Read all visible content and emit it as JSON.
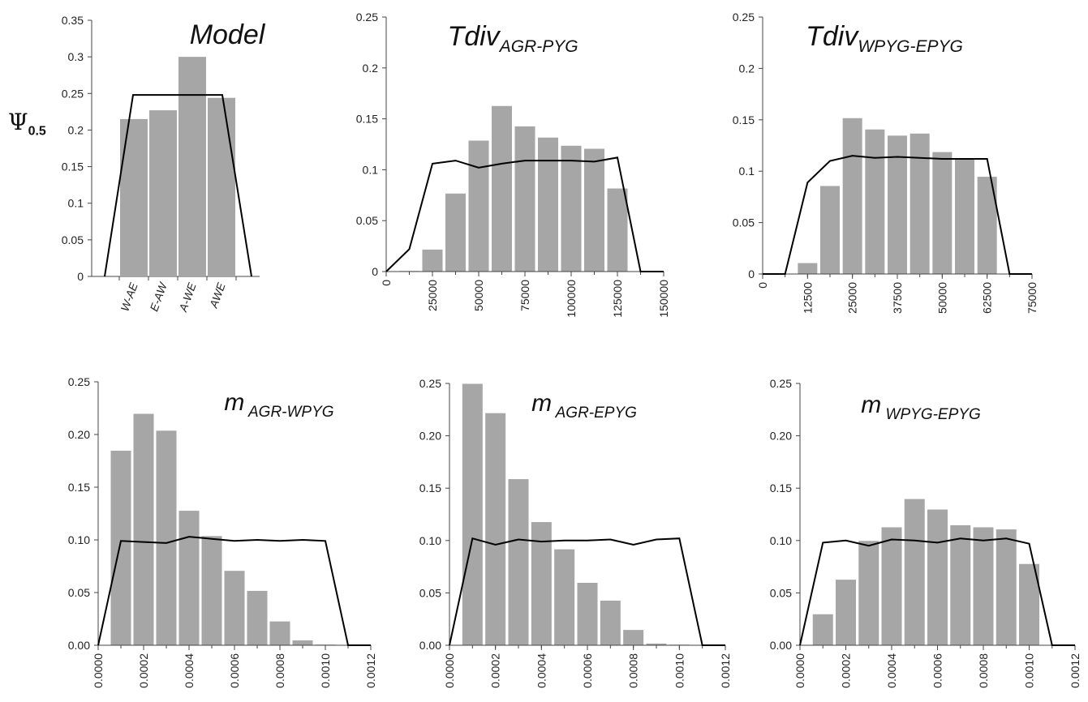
{
  "figure": {
    "ylabel_symbol": "Ψ",
    "ylabel_sub": "0.5"
  },
  "chart_data": [
    {
      "type": "bar",
      "title": "Model",
      "title_sub": "",
      "categories": [
        "W-AE",
        "E-AW",
        "A-WE",
        "AWE"
      ],
      "values": [
        0.215,
        0.227,
        0.3,
        0.244
      ],
      "line_x": [
        -0.5,
        0.0,
        1.0,
        2.0,
        3.0,
        3.5
      ],
      "line_y": [
        0.0,
        0.248,
        0.248,
        0.248,
        0.248,
        0.0
      ],
      "ylim": [
        0,
        0.35
      ],
      "yticks": [
        "0",
        "0.05",
        "0.1",
        "0.15",
        "0.2",
        "0.25",
        "0.3",
        "0.35"
      ],
      "bar_color": "#a6a6a6",
      "line_color": "#000000"
    },
    {
      "type": "bar",
      "title": "Tdiv",
      "title_sub": "AGR-PYG",
      "bin_centers": [
        12500,
        25000,
        37500,
        50000,
        62500,
        75000,
        87500,
        100000,
        112500,
        125000
      ],
      "values": [
        0.001,
        0.022,
        0.077,
        0.129,
        0.163,
        0.143,
        0.132,
        0.124,
        0.121,
        0.082
      ],
      "line_x": [
        0,
        12500,
        25000,
        37500,
        50000,
        62500,
        75000,
        87500,
        100000,
        112500,
        125000,
        137500,
        150000
      ],
      "line_y": [
        0.0,
        0.022,
        0.106,
        0.109,
        0.102,
        0.106,
        0.109,
        0.109,
        0.109,
        0.108,
        0.112,
        0.0,
        0.0
      ],
      "xlim": [
        0,
        150000
      ],
      "ylim": [
        0,
        0.25
      ],
      "xticks": [
        "0",
        "25000",
        "50000",
        "75000",
        "100000",
        "125000",
        "150000"
      ],
      "yticks": [
        "0",
        "0.05",
        "0.1",
        "0.15",
        "0.2",
        "0.25"
      ],
      "bar_color": "#a6a6a6",
      "line_color": "#000000"
    },
    {
      "type": "bar",
      "title": "Tdiv",
      "title_sub": "WPYG-EPYG",
      "bin_centers": [
        12500,
        18750,
        25000,
        31250,
        37500,
        43750,
        50000,
        56250,
        62500
      ],
      "values": [
        0.011,
        0.086,
        0.152,
        0.141,
        0.135,
        0.137,
        0.119,
        0.113,
        0.095
      ],
      "line_x": [
        0,
        6250,
        12500,
        18750,
        25000,
        31250,
        37500,
        43750,
        50000,
        56250,
        62500,
        68750,
        75000
      ],
      "line_y": [
        0.0,
        0.0,
        0.089,
        0.11,
        0.115,
        0.113,
        0.114,
        0.113,
        0.112,
        0.112,
        0.112,
        0.0,
        0.0
      ],
      "xlim": [
        0,
        75000
      ],
      "ylim": [
        0,
        0.25
      ],
      "xticks": [
        "0",
        "12500",
        "25000",
        "37500",
        "50000",
        "62500",
        "75000"
      ],
      "yticks": [
        "0",
        "0.05",
        "0.1",
        "0.15",
        "0.2",
        "0.25"
      ],
      "bar_color": "#a6a6a6",
      "line_color": "#000000"
    },
    {
      "type": "bar",
      "title": "m",
      "title_sub": "AGR-WPYG",
      "bin_centers": [
        0.0001,
        0.0002,
        0.0003,
        0.0004,
        0.0005,
        0.0006,
        0.0007,
        0.0008,
        0.0009,
        0.001
      ],
      "values": [
        0.185,
        0.22,
        0.204,
        0.128,
        0.104,
        0.071,
        0.052,
        0.023,
        0.005,
        0.001
      ],
      "line_x": [
        0.0,
        0.0001,
        0.0002,
        0.0003,
        0.0004,
        0.0005,
        0.0006,
        0.0007,
        0.0008,
        0.0009,
        0.001,
        0.0011,
        0.0012
      ],
      "line_y": [
        0.0,
        0.099,
        0.098,
        0.097,
        0.103,
        0.101,
        0.099,
        0.1,
        0.099,
        0.1,
        0.099,
        0.0,
        0.0
      ],
      "xlim": [
        0,
        0.0012
      ],
      "ylim": [
        0,
        0.25
      ],
      "xticks": [
        "0.0000",
        "0.0002",
        "0.0004",
        "0.0006",
        "0.0008",
        "0.0010",
        "0.0012"
      ],
      "yticks": [
        "0.00",
        "0.05",
        "0.10",
        "0.15",
        "0.20",
        "0.25"
      ],
      "bar_color": "#a6a6a6",
      "line_color": "#000000"
    },
    {
      "type": "bar",
      "title": "m",
      "title_sub": "AGR-EPYG",
      "bin_centers": [
        0.0001,
        0.0002,
        0.0003,
        0.0004,
        0.0005,
        0.0006,
        0.0007,
        0.0008,
        0.0009,
        0.001
      ],
      "values": [
        0.25,
        0.222,
        0.159,
        0.118,
        0.092,
        0.06,
        0.043,
        0.015,
        0.002,
        0.001
      ],
      "line_x": [
        0.0,
        0.0001,
        0.0002,
        0.0003,
        0.0004,
        0.0005,
        0.0006,
        0.0007,
        0.0008,
        0.0009,
        0.001,
        0.0011,
        0.0012
      ],
      "line_y": [
        0.0,
        0.102,
        0.096,
        0.101,
        0.099,
        0.1,
        0.1,
        0.101,
        0.096,
        0.101,
        0.102,
        0.0,
        0.0
      ],
      "xlim": [
        0,
        0.0012
      ],
      "ylim": [
        0,
        0.25
      ],
      "xticks": [
        "0.0000",
        "0.0002",
        "0.0004",
        "0.0006",
        "0.0008",
        "0.0010",
        "0.0012"
      ],
      "yticks": [
        "0.00",
        "0.05",
        "0.10",
        "0.15",
        "0.20",
        "0.25"
      ],
      "bar_color": "#a6a6a6",
      "line_color": "#000000"
    },
    {
      "type": "bar",
      "title": "m",
      "title_sub": "WPYG-EPYG",
      "bin_centers": [
        0.0001,
        0.0002,
        0.0003,
        0.0004,
        0.0005,
        0.0006,
        0.0007,
        0.0008,
        0.0009,
        0.001
      ],
      "values": [
        0.03,
        0.063,
        0.1,
        0.113,
        0.14,
        0.13,
        0.115,
        0.113,
        0.111,
        0.078
      ],
      "line_x": [
        0.0,
        0.0001,
        0.0002,
        0.0003,
        0.0004,
        0.0005,
        0.0006,
        0.0007,
        0.0008,
        0.0009,
        0.001,
        0.0011,
        0.0012
      ],
      "line_y": [
        0.0,
        0.098,
        0.1,
        0.095,
        0.101,
        0.1,
        0.098,
        0.102,
        0.1,
        0.102,
        0.097,
        0.0,
        0.0
      ],
      "xlim": [
        0,
        0.0012
      ],
      "ylim": [
        0,
        0.25
      ],
      "xticks": [
        "0.0000",
        "0.0002",
        "0.0004",
        "0.0006",
        "0.0008",
        "0.0010",
        "0.0012"
      ],
      "yticks": [
        "0.00",
        "0.05",
        "0.10",
        "0.15",
        "0.20",
        "0.25"
      ],
      "bar_color": "#a6a6a6",
      "line_color": "#000000"
    }
  ]
}
